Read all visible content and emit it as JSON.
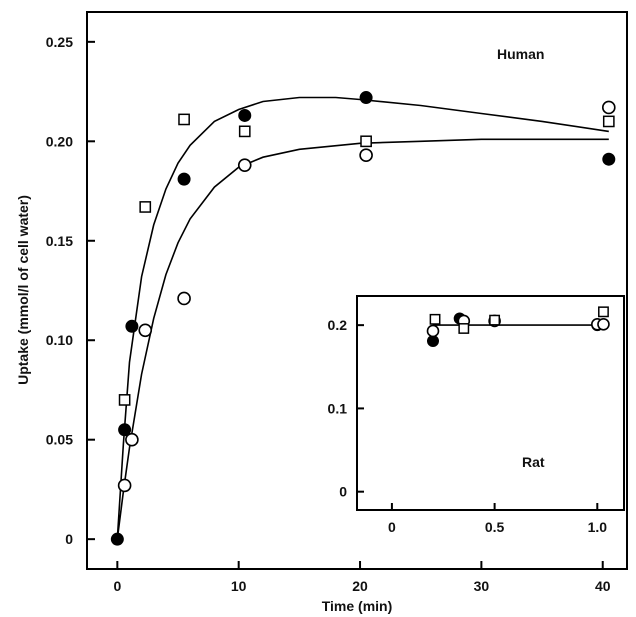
{
  "chart_data": [
    {
      "type": "scatter",
      "panel_label": "Human",
      "xlabel": "Time (min)",
      "ylabel": "Uptake (mmol/l of cell water)",
      "xlim": [
        -2.5,
        42
      ],
      "ylim": [
        -0.015,
        0.265
      ],
      "x_ticks": [
        0,
        10,
        20,
        30,
        40
      ],
      "x_tick_labels": [
        "0",
        "10",
        "20",
        "30",
        "40"
      ],
      "y_ticks": [
        0,
        0.05,
        0.1,
        0.15,
        0.2,
        0.25
      ],
      "y_tick_labels": [
        "0",
        "0.05",
        "0.10",
        "0.15",
        "0.20",
        "0.25"
      ],
      "grid": false,
      "legend": "none",
      "series": [
        {
          "marker": "filled-circle",
          "points": [
            [
              0,
              0
            ],
            [
              0.6,
              0.055
            ],
            [
              1.2,
              0.107
            ],
            [
              5.5,
              0.181
            ],
            [
              10.5,
              0.213
            ],
            [
              20.5,
              0.222
            ],
            [
              40.5,
              0.191
            ]
          ]
        },
        {
          "marker": "open-circle",
          "points": [
            [
              0.6,
              0.027
            ],
            [
              1.2,
              0.05
            ],
            [
              2.3,
              0.105
            ],
            [
              5.5,
              0.121
            ],
            [
              10.5,
              0.188
            ],
            [
              20.5,
              0.193
            ],
            [
              40.5,
              0.217
            ]
          ]
        },
        {
          "marker": "open-square",
          "points": [
            [
              0.6,
              0.07
            ],
            [
              2.3,
              0.167
            ],
            [
              5.5,
              0.211
            ],
            [
              10.5,
              0.205
            ],
            [
              20.5,
              0.2
            ],
            [
              40.5,
              0.21
            ]
          ]
        }
      ],
      "fit_curves": [
        {
          "style": "solid",
          "points": [
            [
              0,
              0
            ],
            [
              0.5,
              0.048
            ],
            [
              1,
              0.089
            ],
            [
              2,
              0.132
            ],
            [
              3,
              0.158
            ],
            [
              4,
              0.176
            ],
            [
              5,
              0.189
            ],
            [
              6,
              0.198
            ],
            [
              8,
              0.21
            ],
            [
              10,
              0.216
            ],
            [
              12,
              0.22
            ],
            [
              15,
              0.222
            ],
            [
              18,
              0.222
            ],
            [
              20,
              0.221
            ],
            [
              25,
              0.218
            ],
            [
              30,
              0.214
            ],
            [
              35,
              0.21
            ],
            [
              40.5,
              0.205
            ]
          ]
        },
        {
          "style": "solid",
          "points": [
            [
              0,
              0
            ],
            [
              0.5,
              0.024
            ],
            [
              1,
              0.046
            ],
            [
              2,
              0.083
            ],
            [
              3,
              0.111
            ],
            [
              4,
              0.133
            ],
            [
              5,
              0.149
            ],
            [
              6,
              0.161
            ],
            [
              8,
              0.177
            ],
            [
              10,
              0.187
            ],
            [
              12,
              0.192
            ],
            [
              15,
              0.196
            ],
            [
              20,
              0.199
            ],
            [
              25,
              0.2
            ],
            [
              30,
              0.201
            ],
            [
              35,
              0.201
            ],
            [
              40.5,
              0.201
            ]
          ]
        }
      ]
    },
    {
      "type": "scatter",
      "panel_label": "Rat",
      "xlabel": "",
      "ylabel": "",
      "xlim": [
        -0.17,
        1.13
      ],
      "ylim": [
        -0.022,
        0.235
      ],
      "x_ticks": [
        0,
        0.5,
        1.0
      ],
      "x_tick_labels": [
        "0",
        "0.5",
        "1.0"
      ],
      "y_ticks": [
        0,
        0.1,
        0.2
      ],
      "y_tick_labels": [
        "0",
        "0.1",
        "0.2"
      ],
      "grid": false,
      "legend": "none",
      "series": [
        {
          "marker": "filled-circle",
          "points": [
            [
              0.2,
              0.181
            ],
            [
              0.33,
              0.208
            ],
            [
              1.0,
              0.2
            ]
          ]
        },
        {
          "marker": "open-circle",
          "points": [
            [
              0.2,
              0.193
            ],
            [
              0.35,
              0.205
            ],
            [
              0.5,
              0.205
            ],
            [
              1.0,
              0.201
            ],
            [
              1.03,
              0.201
            ]
          ]
        },
        {
          "marker": "open-square",
          "points": [
            [
              0.21,
              0.207
            ],
            [
              0.35,
              0.196
            ],
            [
              0.5,
              0.206
            ],
            [
              1.03,
              0.216
            ]
          ]
        }
      ],
      "fit_curves": [
        {
          "style": "solid",
          "points": [
            [
              0.2,
              0.2
            ],
            [
              1.0,
              0.2
            ]
          ]
        }
      ]
    }
  ]
}
